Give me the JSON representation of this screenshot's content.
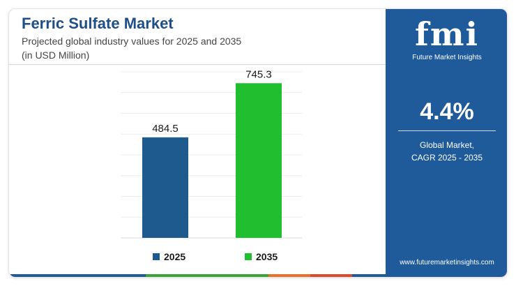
{
  "header": {
    "title": "Ferric Sulfate Market",
    "subtitle_line1": "Projected global industry values for 2025 and 2035",
    "subtitle_line2": "(in USD Million)"
  },
  "colors": {
    "title": "#1f4f86",
    "panel": "#1f5a9a",
    "series_2025": "#1f5a8f",
    "series_2035": "#1fbf2f",
    "strip": [
      "#1f5a9a",
      "#3aa33a",
      "#e8722a",
      "#d94b2b",
      "#1f5a9a"
    ]
  },
  "chart_data": {
    "type": "bar",
    "categories": [
      "2025",
      "2035"
    ],
    "values": [
      484.5,
      745.3
    ],
    "data_labels": [
      "484.5",
      "745.3"
    ],
    "bar_colors": [
      "#1f5a8f",
      "#1fbf2f"
    ],
    "ylim": [
      0,
      800
    ],
    "grid": true,
    "legend": [
      {
        "label": "2025",
        "color": "#1f5a8f"
      },
      {
        "label": "2035",
        "color": "#1fbf2f"
      }
    ],
    "legend_position": "bottom"
  },
  "panel": {
    "logo_mark": "fmi",
    "logo_text": "Future Market Insights",
    "cagr_value": "4.4%",
    "cagr_label_line1": "Global Market,",
    "cagr_label_line2": "CAGR 2025 - 2035",
    "website": "www.futuremarketinsights.com"
  }
}
